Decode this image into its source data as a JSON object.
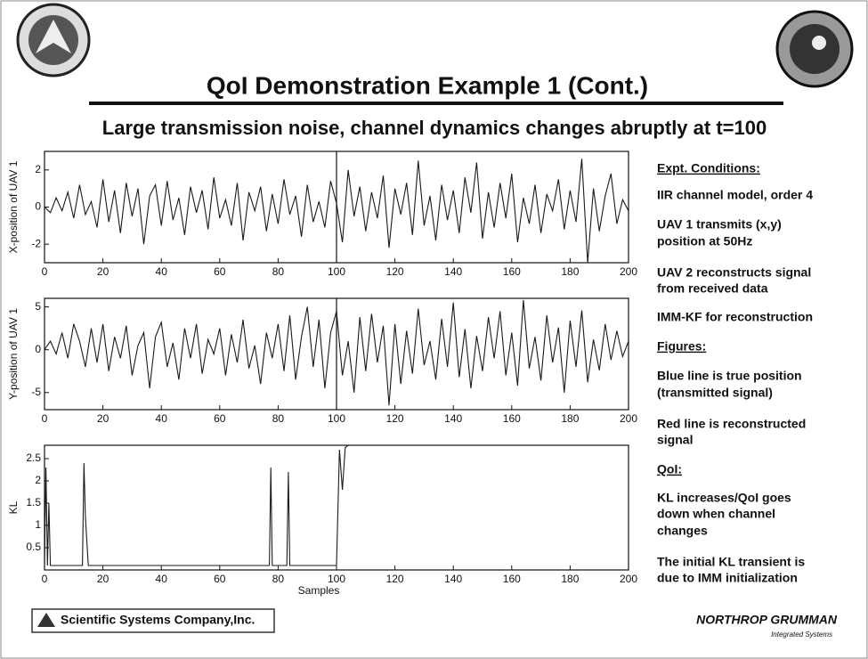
{
  "slide": {
    "title": "QoI Demonstration Example 1 (Cont.)",
    "subtitle": "Large transmission noise, channel dynamics changes abruptly at t=100",
    "footer_left": "Scientific Systems Company,Inc.",
    "footer_right": "NORTHROP GRUMMAN",
    "footer_right_sub": "Integrated Systems",
    "sidebar": [
      {
        "lines": [
          "Expt. Conditions:"
        ],
        "heading": true
      },
      {
        "lines": [
          "IIR channel model, order 4"
        ]
      },
      {
        "lines": [
          "UAV 1 transmits (x,y)",
          "position at 50Hz"
        ]
      },
      {
        "lines": [
          "UAV 2 reconstructs signal",
          "from received data"
        ]
      },
      {
        "lines": [
          "IMM-KF for reconstruction"
        ]
      },
      {
        "lines": [
          "Figures:"
        ],
        "heading": true
      },
      {
        "lines": [
          "Blue line is true position",
          "(transmitted signal)"
        ]
      },
      {
        "lines": [
          "Red line is reconstructed",
          "signal"
        ]
      },
      {
        "lines": [
          "QoI:"
        ],
        "heading": true
      },
      {
        "lines": [
          "KL increases/QoI goes",
          "down when channel",
          "changes"
        ]
      },
      {
        "lines": [
          "The initial KL transient is",
          "due to IMM initialization"
        ]
      }
    ]
  },
  "chart_data": [
    {
      "type": "line",
      "ylabel": "X-position of UAV 1",
      "color": "#1a1a1a",
      "xlim": [
        0,
        200
      ],
      "xticks": [
        0,
        20,
        40,
        60,
        80,
        100,
        120,
        140,
        160,
        180,
        200
      ],
      "ylim": [
        -3,
        3
      ],
      "yticks": [
        -2,
        0,
        2
      ],
      "marker_x": 100,
      "x": [
        0,
        2,
        4,
        6,
        8,
        10,
        12,
        14,
        16,
        18,
        20,
        22,
        24,
        26,
        28,
        30,
        32,
        34,
        36,
        38,
        40,
        42,
        44,
        46,
        48,
        50,
        52,
        54,
        56,
        58,
        60,
        62,
        64,
        66,
        68,
        70,
        72,
        74,
        76,
        78,
        80,
        82,
        84,
        86,
        88,
        90,
        92,
        94,
        96,
        98,
        100,
        102,
        104,
        106,
        108,
        110,
        112,
        114,
        116,
        118,
        120,
        122,
        124,
        126,
        128,
        130,
        132,
        134,
        136,
        138,
        140,
        142,
        144,
        146,
        148,
        150,
        152,
        154,
        156,
        158,
        160,
        162,
        164,
        166,
        168,
        170,
        172,
        174,
        176,
        178,
        180,
        182,
        184,
        186,
        188,
        190,
        192,
        194,
        196,
        198,
        200
      ],
      "values": [
        0,
        -0.3,
        0.5,
        -0.2,
        0.8,
        -0.6,
        1.2,
        -0.4,
        0.3,
        -1.1,
        1.5,
        -0.8,
        0.9,
        -1.4,
        1.3,
        -0.5,
        1.0,
        -2.0,
        0.6,
        1.2,
        -1.0,
        1.4,
        -0.7,
        0.5,
        -1.5,
        1.1,
        -0.3,
        0.9,
        -1.2,
        1.6,
        -0.6,
        0.4,
        -1.0,
        1.3,
        -1.8,
        0.8,
        -0.2,
        1.1,
        -1.3,
        0.7,
        -0.9,
        1.5,
        -0.4,
        0.6,
        -1.6,
        1.2,
        -0.8,
        0.3,
        -1.1,
        1.4,
        0.2,
        -1.9,
        2.0,
        -0.5,
        1.1,
        -1.3,
        0.8,
        -0.6,
        1.7,
        -2.2,
        1.0,
        -0.4,
        1.3,
        -1.5,
        2.5,
        -1.0,
        0.6,
        -1.8,
        1.2,
        -0.7,
        0.9,
        -1.4,
        1.6,
        -0.3,
        2.4,
        -1.7,
        0.8,
        -1.1,
        1.3,
        -0.6,
        1.8,
        -1.9,
        0.5,
        -0.9,
        1.2,
        -1.4,
        0.7,
        -0.2,
        1.5,
        -1.2,
        0.9,
        -0.8,
        2.6,
        -3.0,
        1.0,
        -1.3,
        0.6,
        1.8,
        -0.9,
        0.4,
        -0.2
      ]
    },
    {
      "type": "line",
      "ylabel": "Y-position of UAV 1",
      "color": "#1a1a1a",
      "xlim": [
        0,
        200
      ],
      "xticks": [
        0,
        20,
        40,
        60,
        80,
        100,
        120,
        140,
        160,
        180,
        200
      ],
      "ylim": [
        -7,
        6
      ],
      "yticks": [
        -5,
        0,
        5
      ],
      "marker_x": 100,
      "x": [
        0,
        2,
        4,
        6,
        8,
        10,
        12,
        14,
        16,
        18,
        20,
        22,
        24,
        26,
        28,
        30,
        32,
        34,
        36,
        38,
        40,
        42,
        44,
        46,
        48,
        50,
        52,
        54,
        56,
        58,
        60,
        62,
        64,
        66,
        68,
        70,
        72,
        74,
        76,
        78,
        80,
        82,
        84,
        86,
        88,
        90,
        92,
        94,
        96,
        98,
        100,
        102,
        104,
        106,
        108,
        110,
        112,
        114,
        116,
        118,
        120,
        122,
        124,
        126,
        128,
        130,
        132,
        134,
        136,
        138,
        140,
        142,
        144,
        146,
        148,
        150,
        152,
        154,
        156,
        158,
        160,
        162,
        164,
        166,
        168,
        170,
        172,
        174,
        176,
        178,
        180,
        182,
        184,
        186,
        188,
        190,
        192,
        194,
        196,
        198,
        200
      ],
      "values": [
        0,
        1.0,
        -0.5,
        2.0,
        -1.0,
        3.0,
        1.0,
        -2.0,
        2.5,
        -1.5,
        3.0,
        -2.5,
        1.5,
        -1.0,
        2.8,
        -3.0,
        0.5,
        2.0,
        -4.5,
        1.5,
        3.2,
        -2.0,
        0.8,
        -3.5,
        2.5,
        -1.0,
        3.0,
        -2.8,
        1.2,
        -0.5,
        2.5,
        -3.0,
        1.8,
        -1.5,
        3.5,
        -2.2,
        0.5,
        -4.0,
        2.0,
        -1.0,
        3.0,
        -2.5,
        4.0,
        -3.5,
        1.5,
        5.0,
        -2.0,
        3.5,
        -4.5,
        2.0,
        4.5,
        -3.0,
        1.0,
        -5.0,
        3.8,
        -2.5,
        4.2,
        -1.5,
        2.8,
        -6.5,
        3.0,
        -4.0,
        2.2,
        -2.8,
        4.8,
        -1.8,
        1.0,
        -3.5,
        3.6,
        -2.0,
        5.5,
        -3.2,
        2.4,
        -4.5,
        1.6,
        -2.5,
        3.8,
        -1.0,
        4.5,
        -3.0,
        2.0,
        -4.2,
        5.8,
        -2.2,
        1.5,
        -3.6,
        4.0,
        -1.5,
        2.6,
        -5.0,
        3.4,
        -2.0,
        4.6,
        -3.8,
        1.2,
        -2.4,
        3.0,
        -1.2,
        2.2,
        -0.8,
        1.0
      ]
    },
    {
      "type": "line",
      "ylabel": "KL",
      "xlabel": "Samples",
      "color": "#1a1a1a",
      "xlim": [
        0,
        200
      ],
      "xticks": [
        0,
        20,
        40,
        60,
        80,
        100,
        120,
        140,
        160,
        180,
        200
      ],
      "ylim": [
        0,
        2.8
      ],
      "yticks": [
        0.5,
        1,
        1.5,
        2,
        2.5
      ],
      "x": [
        0,
        0.5,
        1,
        1.5,
        2,
        3,
        12,
        13,
        13.5,
        14,
        15,
        16,
        76,
        77,
        77.5,
        78,
        79,
        82,
        83,
        83.5,
        84,
        85,
        99,
        100,
        101,
        102,
        103,
        104,
        110,
        150,
        200
      ],
      "values": [
        0.1,
        2.3,
        0.1,
        1.5,
        0.1,
        0.1,
        0.1,
        0.1,
        2.4,
        1.2,
        0.1,
        0.1,
        0.1,
        0.1,
        2.3,
        0.1,
        0.1,
        0.1,
        0.1,
        2.2,
        0.1,
        0.1,
        0.1,
        0.1,
        2.7,
        1.8,
        2.75,
        2.8,
        2.85,
        3,
        3
      ]
    }
  ]
}
